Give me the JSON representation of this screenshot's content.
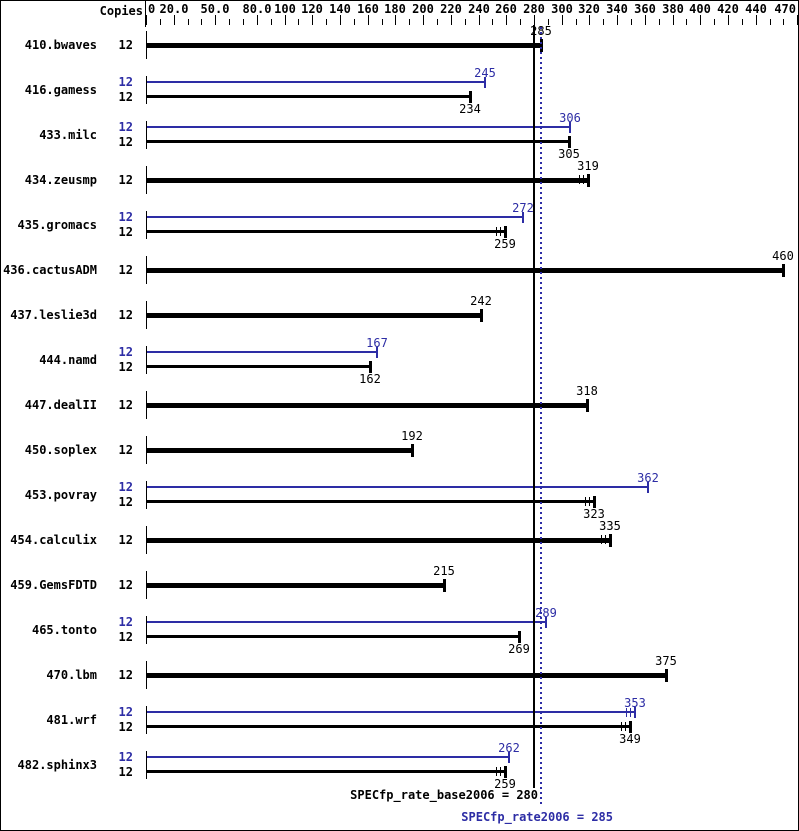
{
  "header": {
    "copies_label": "Copies"
  },
  "footer": {
    "base_text": "SPECfp_rate_base2006 = 280",
    "peak_text": "SPECfp_rate2006 = 285"
  },
  "colors": {
    "base": "#000000",
    "peak": "#2d2da5",
    "background": "#ffffff"
  },
  "chart_data": {
    "type": "bar",
    "orientation": "horizontal",
    "title": "",
    "xlabel": "Copies",
    "xlim": [
      0,
      470
    ],
    "axis_tick_step": 10,
    "grid": false,
    "labeled_ticks": [
      {
        "value": 0,
        "label": "0"
      },
      {
        "value": 20,
        "label": "20.0"
      },
      {
        "value": 50,
        "label": "50.0"
      },
      {
        "value": 80,
        "label": "80.0"
      },
      {
        "value": 100,
        "label": "100"
      },
      {
        "value": 120,
        "label": "120"
      },
      {
        "value": 140,
        "label": "140"
      },
      {
        "value": 160,
        "label": "160"
      },
      {
        "value": 180,
        "label": "180"
      },
      {
        "value": 200,
        "label": "200"
      },
      {
        "value": 220,
        "label": "220"
      },
      {
        "value": 240,
        "label": "240"
      },
      {
        "value": 260,
        "label": "260"
      },
      {
        "value": 280,
        "label": "280"
      },
      {
        "value": 300,
        "label": "300"
      },
      {
        "value": 320,
        "label": "320"
      },
      {
        "value": 340,
        "label": "340"
      },
      {
        "value": 360,
        "label": "360"
      },
      {
        "value": 380,
        "label": "380"
      },
      {
        "value": 400,
        "label": "400"
      },
      {
        "value": 420,
        "label": "420"
      },
      {
        "value": 440,
        "label": "440"
      },
      {
        "value": 470,
        "label": "470"
      }
    ],
    "reference_lines": [
      {
        "name": "base",
        "metric": "SPECfp_rate_base2006",
        "value": 280,
        "style": "solid",
        "color": "#000000"
      },
      {
        "name": "peak",
        "metric": "SPECfp_rate2006",
        "value": 285,
        "style": "dotted",
        "color": "#2d2da5"
      }
    ],
    "summary": {
      "base_metric": "SPECfp_rate_base2006",
      "base_value": 280,
      "peak_metric": "SPECfp_rate2006",
      "peak_value": 285
    },
    "benchmarks": [
      {
        "name": "410.bwaves",
        "copies": 12,
        "peak": null,
        "base": 285,
        "peak_marks": false,
        "base_marks": false
      },
      {
        "name": "416.gamess",
        "copies": 12,
        "peak": 245,
        "base": 234,
        "peak_marks": false,
        "base_marks": false
      },
      {
        "name": "433.milc",
        "copies": 12,
        "peak": 306,
        "base": 305,
        "peak_marks": false,
        "base_marks": false
      },
      {
        "name": "434.zeusmp",
        "copies": 12,
        "peak": null,
        "base": 319,
        "peak_marks": false,
        "base_marks": true
      },
      {
        "name": "435.gromacs",
        "copies": 12,
        "peak": 272,
        "base": 259,
        "peak_marks": false,
        "base_marks": true
      },
      {
        "name": "436.cactusADM",
        "copies": 12,
        "peak": null,
        "base": 460,
        "peak_marks": false,
        "base_marks": false
      },
      {
        "name": "437.leslie3d",
        "copies": 12,
        "peak": null,
        "base": 242,
        "peak_marks": false,
        "base_marks": false
      },
      {
        "name": "444.namd",
        "copies": 12,
        "peak": 167,
        "base": 162,
        "peak_marks": false,
        "base_marks": false
      },
      {
        "name": "447.dealII",
        "copies": 12,
        "peak": null,
        "base": 318,
        "peak_marks": false,
        "base_marks": false
      },
      {
        "name": "450.soplex",
        "copies": 12,
        "peak": null,
        "base": 192,
        "peak_marks": false,
        "base_marks": false
      },
      {
        "name": "453.povray",
        "copies": 12,
        "peak": 362,
        "base": 323,
        "peak_marks": false,
        "base_marks": true
      },
      {
        "name": "454.calculix",
        "copies": 12,
        "peak": null,
        "base": 335,
        "peak_marks": false,
        "base_marks": true
      },
      {
        "name": "459.GemsFDTD",
        "copies": 12,
        "peak": null,
        "base": 215,
        "peak_marks": false,
        "base_marks": false
      },
      {
        "name": "465.tonto",
        "copies": 12,
        "peak": 289,
        "base": 269,
        "peak_marks": false,
        "base_marks": false
      },
      {
        "name": "470.lbm",
        "copies": 12,
        "peak": null,
        "base": 375,
        "peak_marks": false,
        "base_marks": false
      },
      {
        "name": "481.wrf",
        "copies": 12,
        "peak": 353,
        "base": 349,
        "peak_marks": true,
        "base_marks": true
      },
      {
        "name": "482.sphinx3",
        "copies": 12,
        "peak": 262,
        "base": 259,
        "peak_marks": false,
        "base_marks": true
      }
    ]
  }
}
